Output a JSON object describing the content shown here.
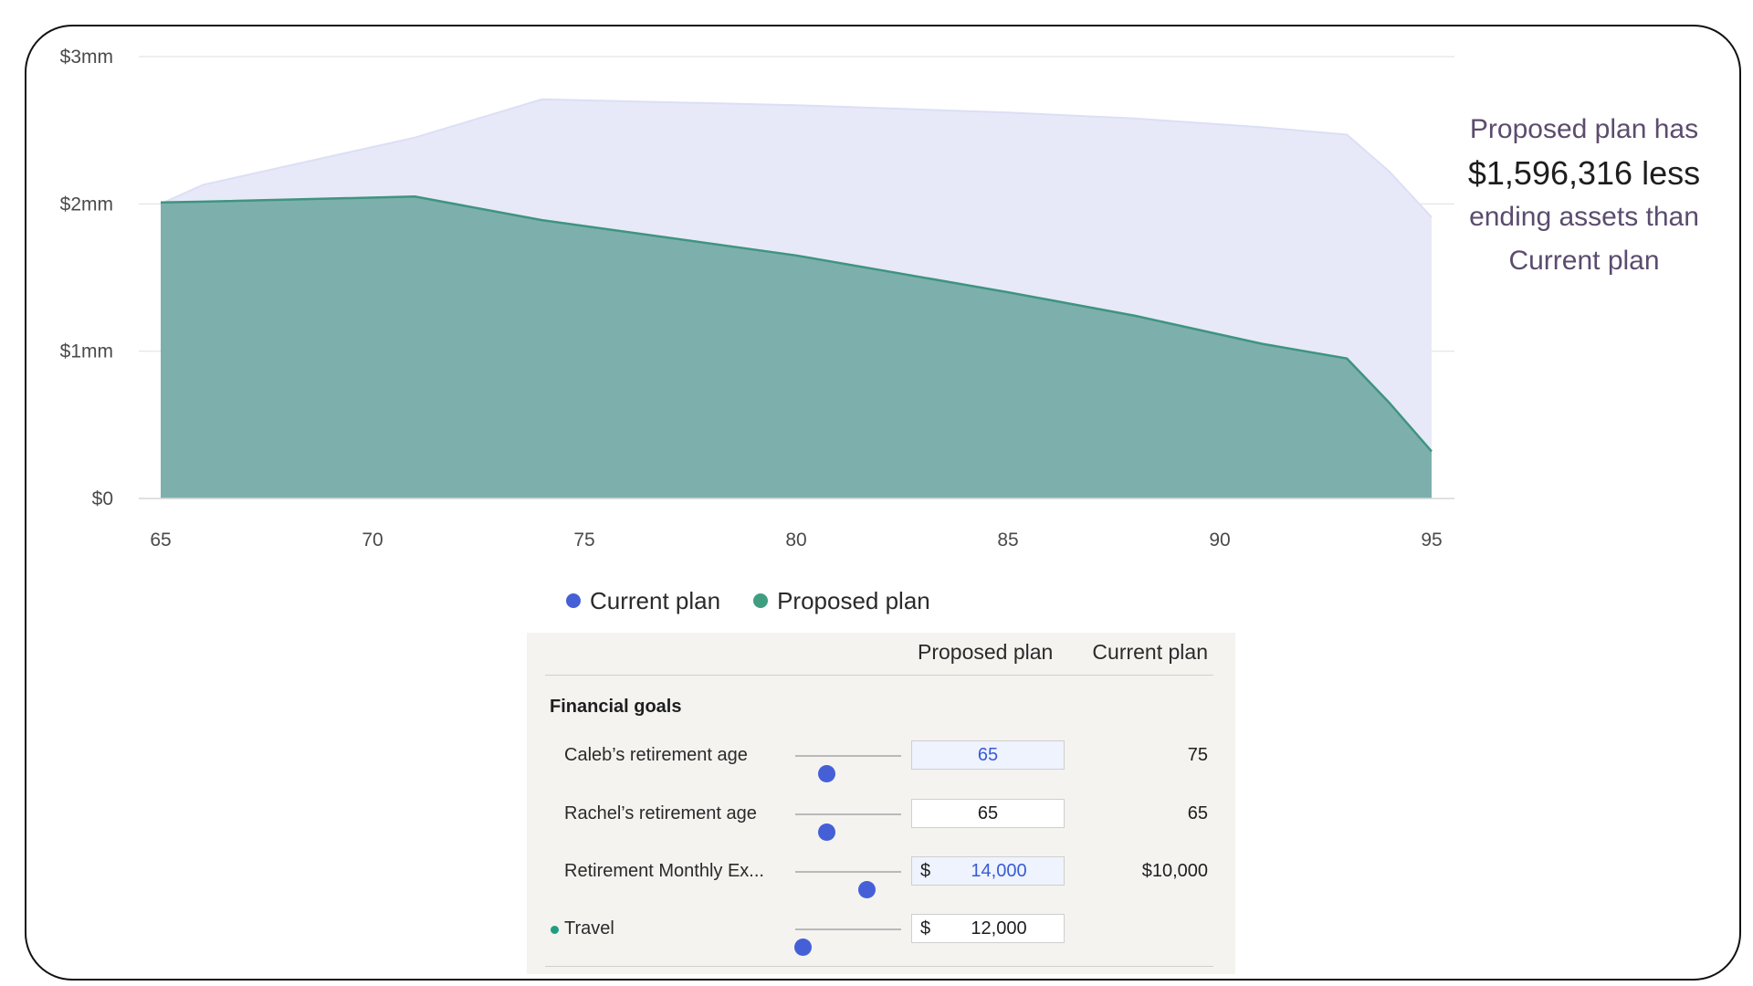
{
  "chart_data": {
    "type": "area",
    "x": [
      65,
      66,
      71,
      74,
      80,
      85,
      88,
      91,
      93,
      94,
      95
    ],
    "series": [
      {
        "name": "Current plan",
        "color": "#e7e9f8",
        "values": [
          2000000,
          2130000,
          2450000,
          2710000,
          2670000,
          2620000,
          2580000,
          2520000,
          2470000,
          2220000,
          1910000
        ]
      },
      {
        "name": "Proposed plan",
        "color": "#7aaeaa",
        "stroke": "#3f9480",
        "values": [
          2010000,
          2015000,
          2050000,
          1890000,
          1650000,
          1400000,
          1240000,
          1050000,
          950000,
          650000,
          320000
        ]
      }
    ],
    "xticks": [
      "65",
      "70",
      "75",
      "80",
      "85",
      "90",
      "95"
    ],
    "xtick_values": [
      65,
      70,
      75,
      80,
      85,
      90,
      95
    ],
    "yticks": [
      "$0",
      "$1mm",
      "$2mm",
      "$3mm"
    ],
    "ytick_values": [
      0,
      1000000,
      2000000,
      3000000
    ],
    "xlim": [
      65,
      95
    ],
    "ylim": [
      0,
      3000000
    ],
    "legend": [
      "Current plan",
      "Proposed plan"
    ],
    "grid": true,
    "legend_position": "bottom-center"
  },
  "annotation": {
    "line1": "Proposed plan has",
    "amount": "$1,596,316 less",
    "line3": "ending assets than",
    "line4": "Current plan"
  },
  "legend": {
    "current": {
      "label": "Current plan",
      "color": "#4560d6"
    },
    "proposed": {
      "label": "Proposed plan",
      "color": "#3f9e80"
    }
  },
  "table": {
    "col_proposed": "Proposed plan",
    "col_current": "Current plan",
    "section": "Financial goals",
    "rows": [
      {
        "label": "Caleb’s retirement age",
        "slider": 0.29,
        "prefix": "",
        "value": "65",
        "current": "75",
        "active": true,
        "dot": false
      },
      {
        "label": "Rachel’s retirement age",
        "slider": 0.29,
        "prefix": "",
        "value": "65",
        "current": "65",
        "active": false,
        "dot": false
      },
      {
        "label": "Retirement Monthly Ex...",
        "slider": 0.67,
        "prefix": "$",
        "value": "14,000",
        "current": "$10,000",
        "active": true,
        "dot": false
      },
      {
        "label": "Travel",
        "slider": 0.07,
        "prefix": "$",
        "value": "12,000",
        "current": "",
        "active": false,
        "dot": true
      }
    ]
  }
}
